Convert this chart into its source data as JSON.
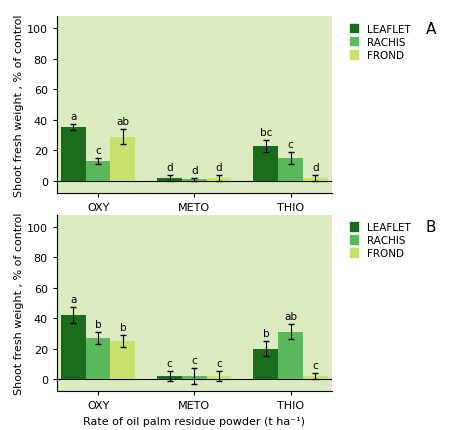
{
  "title_A": "A",
  "title_B": "B",
  "xlabel": "Rate of oil palm residue powder (t ha⁻¹)",
  "ylabel": "Shoot fresh weight , % of control",
  "groups": [
    "OXY",
    "METO",
    "THIO"
  ],
  "series": [
    "LEAFLET",
    "RACHIS",
    "FROND"
  ],
  "colors": [
    "#1a6b1a",
    "#5cb85c",
    "#c8e06e"
  ],
  "panel_A": {
    "values": [
      [
        35,
        13,
        29
      ],
      [
        2,
        1,
        2
      ],
      [
        23,
        15,
        2
      ]
    ],
    "errors": [
      [
        2,
        2,
        5
      ],
      [
        2,
        1,
        2
      ],
      [
        4,
        4,
        2
      ]
    ],
    "labels": [
      [
        "a",
        "c",
        "ab"
      ],
      [
        "d",
        "d",
        "d"
      ],
      [
        "bc",
        "c",
        "d"
      ]
    ]
  },
  "panel_B": {
    "values": [
      [
        42,
        27,
        25
      ],
      [
        2,
        2,
        2
      ],
      [
        20,
        31,
        2
      ]
    ],
    "errors": [
      [
        5,
        4,
        4
      ],
      [
        3,
        5,
        3
      ],
      [
        5,
        5,
        2
      ]
    ],
    "labels": [
      [
        "a",
        "b",
        "b"
      ],
      [
        "c",
        "c",
        "c"
      ],
      [
        "b",
        "ab",
        "c"
      ]
    ]
  },
  "ylim": [
    -8,
    108
  ],
  "yticks": [
    0,
    20,
    40,
    60,
    80,
    100
  ],
  "bar_width": 0.18,
  "group_positions": [
    0.3,
    1.0,
    1.7
  ],
  "background_color": "#ffffff",
  "axes_bg_color": "#ddecc0",
  "label_fontsize": 7.5,
  "tick_fontsize": 8,
  "axis_label_fontsize": 8
}
